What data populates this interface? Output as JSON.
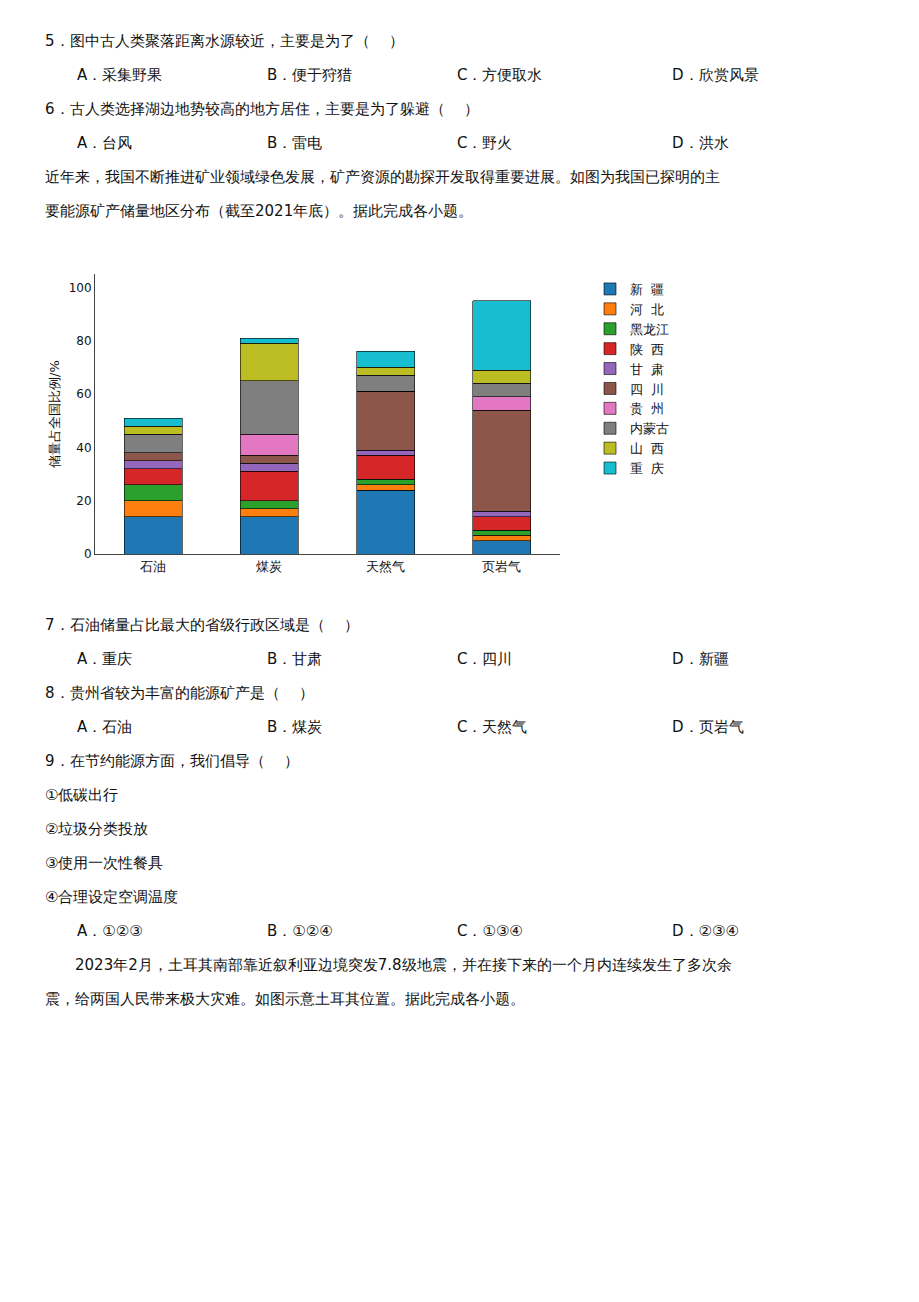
{
  "chart_data": {
    "type": "bar",
    "stacked": true,
    "categories": [
      "石油",
      "煤炭",
      "天然气",
      "页岩气"
    ],
    "ylabel": "储量占全国比例/%",
    "ylim": [
      0,
      105
    ],
    "yticks": [
      0,
      20,
      40,
      60,
      80,
      100
    ],
    "grid": false,
    "legend": "right",
    "series": [
      {
        "name": "新  疆",
        "values": [
          14,
          14,
          24,
          5
        ]
      },
      {
        "name": "河  北",
        "values": [
          6,
          3,
          2,
          2
        ]
      },
      {
        "name": "黑龙江",
        "values": [
          6,
          3,
          2,
          2
        ]
      },
      {
        "name": "陕  西",
        "values": [
          6,
          11,
          9,
          5
        ]
      },
      {
        "name": "甘  肃",
        "values": [
          3,
          3,
          2,
          2
        ]
      },
      {
        "name": "四  川",
        "values": [
          3,
          3,
          22,
          38
        ]
      },
      {
        "name": "贵  州",
        "values": [
          0,
          8,
          0,
          5
        ]
      },
      {
        "name": "内蒙古",
        "values": [
          7,
          20,
          6,
          5
        ]
      },
      {
        "name": "山  西",
        "values": [
          3,
          14,
          3,
          5
        ]
      },
      {
        "name": "重  庆",
        "values": [
          3,
          2,
          6,
          26
        ]
      }
    ],
    "annotations": [
      [
        "5．图中古人类聚落距离水源较近，主要是为了（    ）"
      ],
      [
        "A．采集野果",
        "B．便于狩猎",
        "C．方便取水",
        "D．欣赏风景"
      ],
      [
        "6．古人类选择湖边地势较高的地方居住，主要是为了躲避（    ）"
      ],
      [
        "A．台风",
        "B．雷电",
        "C．野火",
        "D．洪水"
      ],
      [
        "近年来，我国不断推进矿业领域绿色发展，矿产资源的勘探开发取得重要进展。如图为我国已探明的主"
      ],
      [
        "要能源矿产储量地区分布（截至2021年底）。据此完成各小题。"
      ],
      [
        "7．石油储量占比最大的省级行政区域是（    ）"
      ],
      [
        "A．重庆",
        "B．甘肃",
        "C．四川",
        "D．新疆"
      ],
      [
        "8．贵州省较为丰富的能源矿产是（    ）"
      ],
      [
        "A．石油",
        "B．煤炭",
        "C．天然气",
        "D．页岩气"
      ],
      [
        "9．在节约能源方面，我们倡导（    ）"
      ],
      [
        "①低碳出行"
      ],
      [
        "②垃圾分类投放"
      ],
      [
        "③使用一次性餐具"
      ],
      [
        "④合理设定空调温度"
      ],
      [
        "A．①②③",
        "B．①②④",
        "C．①③④",
        "D．②③④"
      ],
      [
        "　　2023年2月，土耳其南部靠近叙利亚边境突发7.8级地震，并在接下来的一个月内连续发生了多次余"
      ],
      [
        "震，给两国人民带来极大灾难。如图示意土耳其位置。据此完成各小题。"
      ]
    ]
  }
}
